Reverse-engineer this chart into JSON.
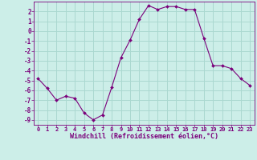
{
  "x": [
    0,
    1,
    2,
    3,
    4,
    5,
    6,
    7,
    8,
    9,
    10,
    11,
    12,
    13,
    14,
    15,
    16,
    17,
    18,
    19,
    20,
    21,
    22,
    23
  ],
  "y": [
    -4.8,
    -5.8,
    -7.0,
    -6.6,
    -6.8,
    -8.3,
    -9.0,
    -8.5,
    -5.7,
    -2.7,
    -0.9,
    1.2,
    2.6,
    2.2,
    2.5,
    2.5,
    2.2,
    2.2,
    -0.7,
    -3.5,
    -3.5,
    -3.8,
    -4.8,
    -5.5
  ],
  "line_color": "#7b007b",
  "marker": "D",
  "marker_size": 2.0,
  "bg_color": "#cceee8",
  "grid_color": "#aad8d0",
  "xlabel": "Windchill (Refroidissement éolien,°C)",
  "xlim": [
    -0.5,
    23.5
  ],
  "ylim": [
    -9.5,
    3.0
  ],
  "yticks": [
    2,
    1,
    0,
    -1,
    -2,
    -3,
    -4,
    -5,
    -6,
    -7,
    -8,
    -9
  ],
  "xticks": [
    0,
    1,
    2,
    3,
    4,
    5,
    6,
    7,
    8,
    9,
    10,
    11,
    12,
    13,
    14,
    15,
    16,
    17,
    18,
    19,
    20,
    21,
    22,
    23
  ]
}
